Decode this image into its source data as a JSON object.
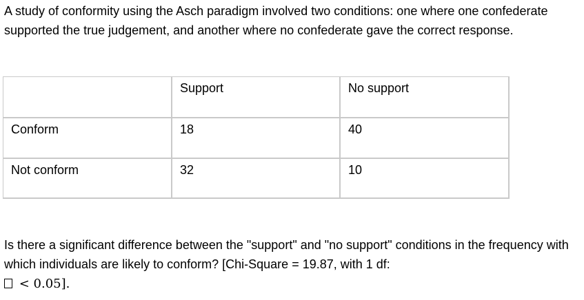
{
  "intro_text": "A study of conformity using the Asch paradigm involved two conditions: one where one confederate supported the true judgement, and another where no confederate gave the correct response.",
  "table": {
    "columns": [
      "",
      "Support",
      "No support"
    ],
    "rows": [
      {
        "label": "Conform",
        "support": "18",
        "no_support": "40"
      },
      {
        "label": "Not conform",
        "support": "32",
        "no_support": "10"
      }
    ]
  },
  "question": {
    "text": "Is there a significant difference between the \"support\" and \"no support\" conditions in the frequency with which individuals are likely to conform? [Chi-Square = 19.87, with 1 df:",
    "symbol": "missing-glyph-box",
    "tail_prefix": " < ",
    "tail_value": "0.05",
    "tail_suffix": "]."
  }
}
